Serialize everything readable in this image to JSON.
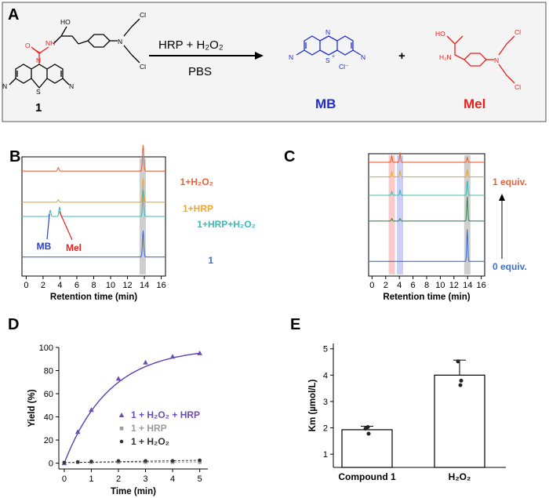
{
  "panel_letters": [
    "A",
    "B",
    "C",
    "D",
    "E"
  ],
  "scheme": {
    "reactant_label": "1",
    "arrow_top": "HRP + H₂O₂",
    "arrow_bottom": "PBS",
    "product1_label": "MB",
    "product2_label": "Mel",
    "plus": "+",
    "colors": {
      "reactant": "#000000",
      "carbamate": "#e8201c",
      "mb": "#1f2dd4",
      "mel": "#e8201c"
    },
    "atoms": {
      "cl": "Cl",
      "oh": "HO",
      "o": "O",
      "n": "N",
      "nh": "NH",
      "s": "S",
      "s_plus": "S",
      "plus_sign": "+",
      "cl_minus": "Cl⁻",
      "nh2": "H₂N"
    }
  },
  "chart_data": [
    {
      "panel": "B",
      "type": "line",
      "xlabel": "Retention time (min)",
      "xlim": [
        -0.5,
        16.5
      ],
      "xticks": [
        0,
        2,
        4,
        6,
        8,
        10,
        12,
        14,
        16
      ],
      "traces": [
        {
          "name": "1+H₂O₂",
          "color": "#e8623a",
          "baseline": 0.88,
          "peaks": [
            [
              3.8,
              0.03
            ],
            [
              13.85,
              0.22
            ]
          ]
        },
        {
          "name": "1+HRP",
          "color": "#f0a830",
          "baseline": 0.62,
          "peaks": [
            [
              3.8,
              0.02
            ],
            [
              13.85,
              0.2
            ]
          ]
        },
        {
          "name": "1+HRP+H₂O₂",
          "color": "#3bbbb8",
          "baseline": 0.5,
          "peaks": [
            [
              2.85,
              0.05
            ],
            [
              3.95,
              0.08
            ],
            [
              13.85,
              0.22
            ]
          ]
        },
        {
          "name": "1",
          "color": "#3f6fd0",
          "baseline": 0.16,
          "peaks": [
            [
              13.85,
              0.22
            ]
          ]
        }
      ],
      "highlight_bands": [
        {
          "x": 13.8,
          "color": "#bdbdbd"
        }
      ],
      "annotations": [
        {
          "text": "MB",
          "color": "#2a40cc",
          "target_x": 2.85
        },
        {
          "text": "Mel",
          "color": "#e8201c",
          "target_x": 3.95
        }
      ]
    },
    {
      "panel": "C",
      "type": "line",
      "xlabel": "Retention time (min)",
      "xlim": [
        -0.5,
        16.5
      ],
      "xticks": [
        0,
        2,
        4,
        6,
        8,
        10,
        12,
        14,
        16
      ],
      "traces": [
        {
          "color": "#e8623a",
          "baseline": 0.93,
          "peaks": [
            [
              2.9,
              0.05
            ],
            [
              4.1,
              0.08
            ],
            [
              13.95,
              0.04
            ]
          ]
        },
        {
          "color": "#f0a830",
          "baseline": 0.81,
          "peaks": [
            [
              2.9,
              0.04
            ],
            [
              4.1,
              0.05
            ],
            [
              13.95,
              0.06
            ]
          ]
        },
        {
          "color": "#3bbbb8",
          "baseline": 0.66,
          "peaks": [
            [
              2.9,
              0.03
            ],
            [
              4.1,
              0.04
            ],
            [
              13.95,
              0.12
            ]
          ]
        },
        {
          "color": "#3a8a50",
          "baseline": 0.45,
          "peaks": [
            [
              2.9,
              0.02
            ],
            [
              4.1,
              0.02
            ],
            [
              13.95,
              0.2
            ]
          ]
        },
        {
          "color": "#3f6fd0",
          "baseline": 0.12,
          "peaks": [
            [
              13.95,
              0.26
            ]
          ]
        }
      ],
      "highlight_bands": [
        {
          "x": 2.9,
          "color": "#f7b8b8"
        },
        {
          "x": 4.1,
          "color": "#b8c0f2"
        },
        {
          "x": 13.95,
          "color": "#bdbdbd"
        }
      ],
      "labels": [
        {
          "text": "1 equiv.",
          "color": "#e8623a"
        },
        {
          "text": "0 equiv.",
          "color": "#3f6fd0"
        }
      ]
    },
    {
      "panel": "D",
      "type": "scatter",
      "xlabel": "Time (min)",
      "ylabel": "Yield (%)",
      "xlim": [
        -0.2,
        5.3
      ],
      "ylim": [
        -5,
        100
      ],
      "xticks": [
        0,
        1,
        2,
        3,
        4,
        5
      ],
      "yticks": [
        0,
        20,
        40,
        60,
        80,
        100
      ],
      "series": [
        {
          "name": "1 + H₂O₂ + HRP",
          "color": "#6a4fb0",
          "marker": "triangle",
          "x": [
            0,
            0.5,
            1,
            2,
            3,
            4,
            5
          ],
          "y": [
            0,
            27,
            46,
            73,
            87,
            92,
            95
          ],
          "err": [
            0,
            1,
            1.5,
            1.5,
            1.5,
            1,
            1
          ]
        },
        {
          "name": "1 + HRP",
          "color": "#9a9a9a",
          "marker": "square",
          "x": [
            0,
            0.5,
            1,
            2,
            3,
            4,
            5
          ],
          "y": [
            0.5,
            1,
            1,
            1,
            1,
            1,
            1
          ]
        },
        {
          "name": "1 + H₂O₂",
          "color": "#333333",
          "marker": "circle",
          "x": [
            0,
            0.5,
            1,
            2,
            3,
            4,
            5
          ],
          "y": [
            0.5,
            1,
            1.5,
            2,
            2,
            2,
            2.5
          ]
        }
      ],
      "fit": {
        "color": "#5b3fb0",
        "model": "100*(1-exp(-0.6*t))"
      },
      "dash_lines": [
        {
          "color": "#9a9a9a"
        },
        {
          "color": "#333333"
        }
      ]
    },
    {
      "panel": "E",
      "type": "bar",
      "ylabel": "Km (µmol/L)",
      "categories": [
        "Compound 1",
        "H₂O₂"
      ],
      "values": [
        1.93,
        4.0
      ],
      "errors": [
        0.13,
        0.57
      ],
      "points": [
        [
          1.97,
          1.78,
          2.03
        ],
        [
          4.52,
          3.79,
          3.62
        ]
      ],
      "ylim": [
        0.5,
        5.2
      ],
      "yticks": [
        1,
        2,
        3,
        4,
        5
      ]
    }
  ]
}
